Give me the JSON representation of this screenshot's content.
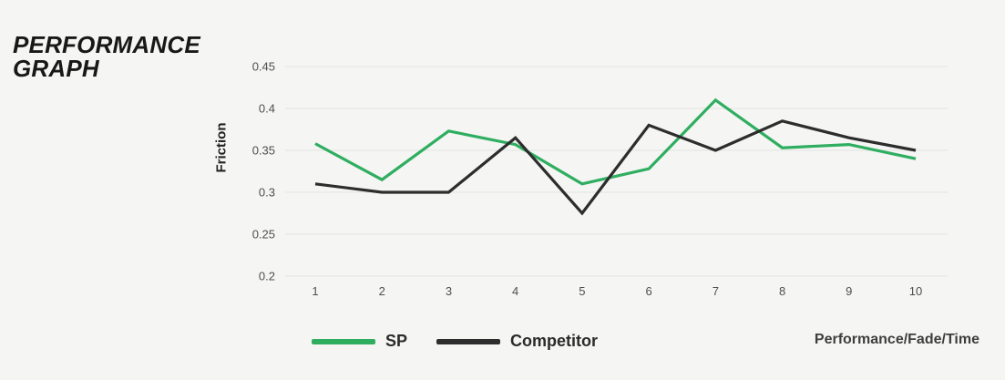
{
  "page": {
    "title_line1": "PERFORMANCE",
    "title_line2": "GRAPH"
  },
  "chart_data": {
    "type": "line",
    "title": "Performance Graph",
    "ylabel": "Friction",
    "xlabel": "",
    "footnote": "Performance/Fade/Time",
    "categories": [
      "1",
      "2",
      "3",
      "4",
      "5",
      "6",
      "7",
      "8",
      "9",
      "10"
    ],
    "y_ticks": [
      "0.45",
      "0.4",
      "0.35",
      "0.3",
      "0.25",
      "0.2"
    ],
    "ylim": [
      0.2,
      0.45
    ],
    "grid": "horizontal",
    "legend_position": "bottom",
    "series": [
      {
        "name": "SP",
        "color": "#2fae60",
        "values": [
          0.358,
          0.315,
          0.373,
          0.357,
          0.31,
          0.328,
          0.41,
          0.353,
          0.357,
          0.34
        ]
      },
      {
        "name": "Competitor",
        "color": "#2d2d2d",
        "values": [
          0.31,
          0.3,
          0.3,
          0.365,
          0.275,
          0.38,
          0.35,
          0.385,
          0.365,
          0.35
        ]
      }
    ]
  },
  "colors": {
    "background": "#f5f5f4",
    "grid": "#e6e6e4",
    "tick_text": "#4f4f4f",
    "title_text": "#181818"
  }
}
